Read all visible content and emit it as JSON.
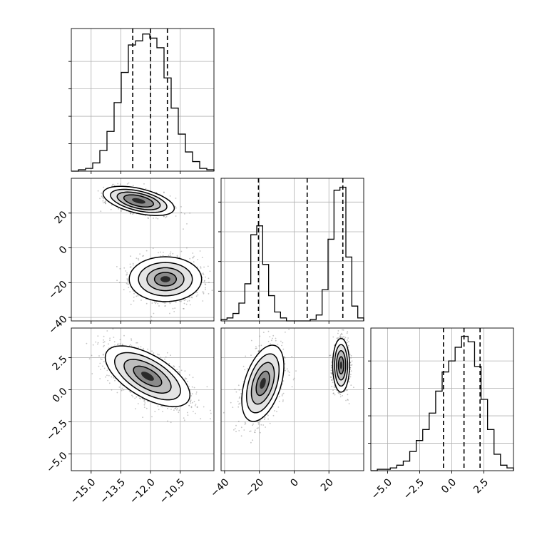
{
  "chart_data": {
    "type": "corner",
    "parameters": [
      {
        "name": "x0",
        "range": [
          -16.0,
          -8.8
        ],
        "tick_values": [
          -15.0,
          -13.5,
          -12.0,
          -10.5
        ],
        "tick_labels": [
          "−15.0",
          "−13.5",
          "−12.0",
          "−10.5"
        ],
        "quantiles": [
          -12.9,
          -12.0,
          -11.15
        ]
      },
      {
        "name": "x1",
        "range": [
          -42,
          40
        ],
        "tick_values": [
          -40,
          -20,
          0,
          20
        ],
        "tick_labels": [
          "−40",
          "−20",
          "0",
          "20"
        ],
        "quantiles": [
          -20.5,
          7.5,
          28.0
        ]
      },
      {
        "name": "x2",
        "range": [
          -6.3,
          4.8
        ],
        "tick_values": [
          -5.0,
          -2.5,
          0.0,
          2.5
        ],
        "tick_labels": [
          "−5.0",
          "−2.5",
          "0.0",
          "2.5"
        ],
        "quantiles": [
          -0.65,
          0.95,
          2.2
        ]
      }
    ],
    "diagonal_histograms": [
      {
        "param": "x0",
        "values": [
          0.0,
          0.01,
          0.02,
          0.06,
          0.15,
          0.29,
          0.5,
          0.72,
          0.92,
          0.95,
          1.0,
          0.97,
          0.9,
          0.68,
          0.46,
          0.27,
          0.14,
          0.07,
          0.02,
          0.01
        ],
        "ylim": [
          0,
          1.04
        ]
      },
      {
        "param": "x1",
        "values": [
          0.01,
          0.02,
          0.05,
          0.12,
          0.25,
          0.58,
          0.64,
          0.38,
          0.17,
          0.06,
          0.02,
          0.0,
          0.0,
          0.0,
          0.0,
          0.01,
          0.04,
          0.21,
          0.55,
          0.88,
          0.9,
          0.43,
          0.1,
          0.02
        ],
        "ylim": [
          0,
          0.96
        ]
      },
      {
        "param": "x2",
        "values": [
          0.0,
          0.01,
          0.01,
          0.02,
          0.04,
          0.07,
          0.14,
          0.22,
          0.3,
          0.42,
          0.58,
          0.72,
          0.8,
          0.9,
          0.98,
          0.94,
          0.76,
          0.52,
          0.3,
          0.12,
          0.04,
          0.02
        ],
        "ylim": [
          0,
          1.04
        ]
      }
    ],
    "scatter_panels": [
      {
        "x": "x0",
        "y": "x1",
        "clusters": [
          {
            "cx": -12.6,
            "cy": 27,
            "sx": 0.75,
            "sy": 3.5,
            "rho": -0.5,
            "contour_scales": [
              1.0,
              1.45,
              1.9,
              2.4
            ],
            "n_points": 1100
          },
          {
            "cx": -11.25,
            "cy": -18,
            "sx": 0.85,
            "sy": 6.0,
            "rho": 0.0,
            "contour_scales": [
              0.65,
              1.1,
              1.6,
              2.15
            ],
            "n_points": 1100
          }
        ]
      },
      {
        "x": "x0",
        "y": "x2",
        "clusters": [
          {
            "cx": -12.15,
            "cy": 1.05,
            "sx": 0.95,
            "sy": 1.05,
            "rho": -0.62,
            "contour_scales": [
              0.75,
              1.25,
              1.75,
              2.25
            ],
            "n_points": 1700
          }
        ]
      },
      {
        "x": "x1",
        "y": "x2",
        "clusters": [
          {
            "cx": -18,
            "cy": 0.5,
            "sx": 5.5,
            "sy": 1.35,
            "rho": 0.45,
            "contour_scales": [
              0.7,
              1.2,
              1.7,
              2.2
            ],
            "n_points": 1000
          },
          {
            "cx": 27,
            "cy": 1.9,
            "sx": 2.2,
            "sy": 0.95,
            "rho": 0.0,
            "contour_scales": [
              0.7,
              1.2,
              1.7,
              2.2
            ],
            "n_points": 1000
          }
        ]
      }
    ],
    "grid": true,
    "xlabel": "",
    "ylabel": "",
    "title": ""
  }
}
